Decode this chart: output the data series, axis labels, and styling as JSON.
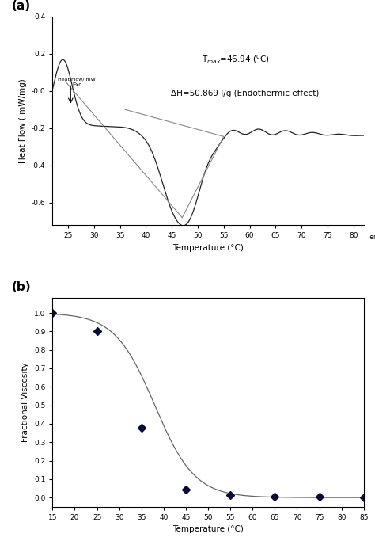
{
  "panel_a": {
    "title_label": "(a)",
    "xlabel": "Temperature (°C)",
    "ylabel": "Heat Flow ( mW/mg)",
    "xlim": [
      22,
      82
    ],
    "ylim": [
      -0.72,
      0.1
    ],
    "yticks": [
      0.4,
      0.2,
      -0.0,
      -0.2,
      -0.4,
      -0.6
    ],
    "ytick_labels": [
      "0.4",
      "0.2",
      "-0.0",
      "-0.2",
      "-0.4",
      "-0.6"
    ],
    "xticks": [
      25,
      30,
      35,
      40,
      45,
      50,
      55,
      60,
      65,
      70,
      75,
      80
    ],
    "annotation_tmax": "T$_{max}$=46.94 ($^{0}$C)",
    "annotation_dh": "ΔH=50.869 J/g (Endothermic effect)",
    "inset_label1": "Heat Flow/ mW",
    "inset_label2": "Exo",
    "x_axis_label_right": "Temperature/ °C",
    "line_color": "#222222",
    "tangent_color": "#888888",
    "bg_color": "#ffffff"
  },
  "panel_b": {
    "title_label": "(b)",
    "xlabel": "Temperature (°C)",
    "ylabel": "Fractional Viscosity",
    "xlim": [
      15,
      85
    ],
    "ylim": [
      -0.05,
      1.08
    ],
    "yticks": [
      0.0,
      0.1,
      0.2,
      0.3,
      0.4,
      0.5,
      0.6,
      0.7,
      0.8,
      0.9,
      1.0
    ],
    "xticks": [
      15,
      20,
      25,
      30,
      35,
      40,
      45,
      50,
      55,
      60,
      65,
      70,
      75,
      80,
      85
    ],
    "data_x": [
      15,
      25,
      35,
      45,
      55,
      65,
      75,
      85
    ],
    "data_y": [
      1.0,
      0.9,
      0.38,
      0.045,
      0.015,
      0.005,
      0.005,
      0.002
    ],
    "marker_color": "#0a0a3a",
    "line_color": "#666666",
    "bg_color": "#ffffff"
  }
}
